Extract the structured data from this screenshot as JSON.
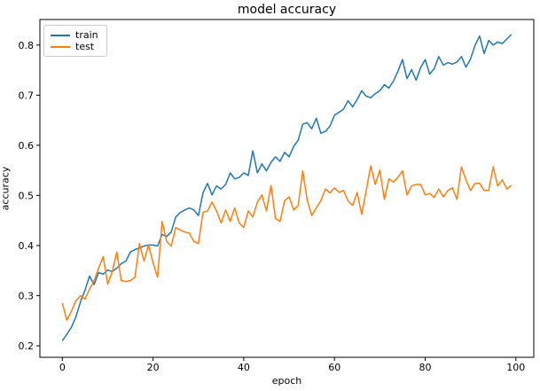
{
  "figure": {
    "title": "model accuracy",
    "xlabel": "epoch",
    "ylabel": "accuracy",
    "legend_items": [
      {
        "label": "train",
        "color": "#1f77b4"
      },
      {
        "label": "test",
        "color": "#ff7f0e"
      }
    ],
    "background_color": "#ffffff",
    "spine_color": "#000000"
  },
  "chart_data": {
    "type": "line",
    "title": "model accuracy",
    "xlabel": "epoch",
    "ylabel": "accuracy",
    "grid": false,
    "legend_position": "upper left",
    "xlim": [
      -4.95,
      103.95
    ],
    "ylim": [
      0.177,
      0.851
    ],
    "x_ticks": [
      0,
      20,
      40,
      60,
      80,
      100
    ],
    "y_ticks": [
      0.2,
      0.3,
      0.4,
      0.5,
      0.6,
      0.7,
      0.8
    ],
    "x": [
      0,
      1,
      2,
      3,
      4,
      5,
      6,
      7,
      8,
      9,
      10,
      11,
      12,
      13,
      14,
      15,
      16,
      17,
      18,
      19,
      20,
      21,
      22,
      23,
      24,
      25,
      26,
      27,
      28,
      29,
      30,
      31,
      32,
      33,
      34,
      35,
      36,
      37,
      38,
      39,
      40,
      41,
      42,
      43,
      44,
      45,
      46,
      47,
      48,
      49,
      50,
      51,
      52,
      53,
      54,
      55,
      56,
      57,
      58,
      59,
      60,
      61,
      62,
      63,
      64,
      65,
      66,
      67,
      68,
      69,
      70,
      71,
      72,
      73,
      74,
      75,
      76,
      77,
      78,
      79,
      80,
      81,
      82,
      83,
      84,
      85,
      86,
      87,
      88,
      89,
      90,
      91,
      92,
      93,
      94,
      95,
      96,
      97,
      98,
      99
    ],
    "series": [
      {
        "name": "train",
        "color": "#1f77b4",
        "values": [
          0.21,
          0.223,
          0.237,
          0.258,
          0.288,
          0.311,
          0.339,
          0.322,
          0.346,
          0.343,
          0.351,
          0.348,
          0.355,
          0.364,
          0.369,
          0.387,
          0.392,
          0.395,
          0.399,
          0.401,
          0.401,
          0.399,
          0.422,
          0.418,
          0.427,
          0.457,
          0.466,
          0.471,
          0.475,
          0.471,
          0.46,
          0.505,
          0.524,
          0.501,
          0.519,
          0.513,
          0.522,
          0.545,
          0.533,
          0.536,
          0.545,
          0.54,
          0.589,
          0.545,
          0.563,
          0.549,
          0.566,
          0.577,
          0.568,
          0.586,
          0.577,
          0.598,
          0.61,
          0.642,
          0.645,
          0.633,
          0.654,
          0.624,
          0.628,
          0.638,
          0.66,
          0.666,
          0.672,
          0.689,
          0.677,
          0.691,
          0.709,
          0.698,
          0.695,
          0.703,
          0.709,
          0.721,
          0.714,
          0.728,
          0.748,
          0.771,
          0.733,
          0.751,
          0.73,
          0.755,
          0.771,
          0.742,
          0.753,
          0.777,
          0.76,
          0.765,
          0.762,
          0.766,
          0.777,
          0.756,
          0.772,
          0.8,
          0.818,
          0.783,
          0.809,
          0.8,
          0.806,
          0.803,
          0.812,
          0.821
        ]
      },
      {
        "name": "test",
        "color": "#ff7f0e",
        "values": [
          0.285,
          0.251,
          0.269,
          0.29,
          0.3,
          0.293,
          0.313,
          0.33,
          0.355,
          0.378,
          0.323,
          0.348,
          0.387,
          0.33,
          0.328,
          0.33,
          0.337,
          0.404,
          0.369,
          0.401,
          0.366,
          0.337,
          0.448,
          0.408,
          0.399,
          0.436,
          0.431,
          0.427,
          0.425,
          0.408,
          0.404,
          0.466,
          0.469,
          0.487,
          0.469,
          0.445,
          0.471,
          0.448,
          0.475,
          0.445,
          0.436,
          0.469,
          0.457,
          0.487,
          0.501,
          0.469,
          0.52,
          0.454,
          0.448,
          0.489,
          0.497,
          0.471,
          0.48,
          0.549,
          0.49,
          0.46,
          0.475,
          0.49,
          0.513,
          0.505,
          0.515,
          0.506,
          0.51,
          0.489,
          0.48,
          0.506,
          0.462,
          0.51,
          0.559,
          0.522,
          0.55,
          0.492,
          0.533,
          0.527,
          0.536,
          0.549,
          0.501,
          0.519,
          0.522,
          0.522,
          0.501,
          0.504,
          0.496,
          0.513,
          0.497,
          0.51,
          0.515,
          0.492,
          0.557,
          0.531,
          0.51,
          0.524,
          0.524,
          0.51,
          0.51,
          0.557,
          0.519,
          0.531,
          0.513,
          0.52
        ]
      }
    ]
  }
}
